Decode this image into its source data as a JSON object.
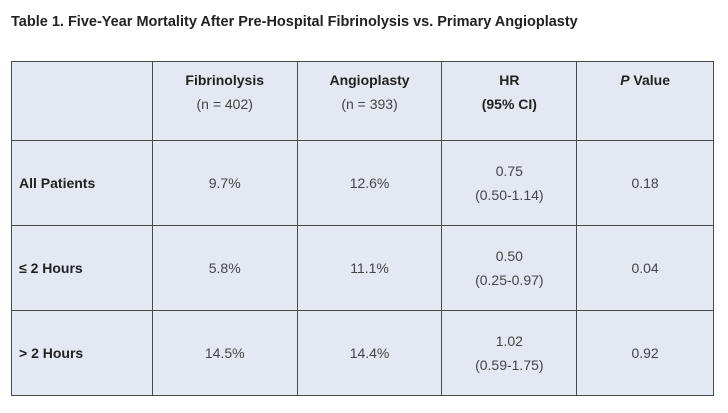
{
  "title": "Table 1. Five-Year Mortality After Pre-Hospital Fibrinolysis vs. Primary Angioplasty",
  "header": {
    "fibrinolysis": {
      "label": "Fibrinolysis",
      "sub": "(n = 402)"
    },
    "angioplasty": {
      "label": "Angioplasty",
      "sub": "(n = 393)"
    },
    "hr": {
      "label": "HR",
      "sub": "(95% CI)"
    },
    "pvalue": {
      "label_italic": "P",
      "label_rest": " Value"
    }
  },
  "rows": [
    {
      "label": "All Patients",
      "fibrinolysis": "9.7%",
      "angioplasty": "12.6%",
      "hr": "0.75",
      "ci": "(0.50-1.14)",
      "p": "0.18"
    },
    {
      "label": "≤ 2 Hours",
      "fibrinolysis": "5.8%",
      "angioplasty": "11.1%",
      "hr": "0.50",
      "ci": "(0.25-0.97)",
      "p": "0.04"
    },
    {
      "label": "> 2 Hours",
      "fibrinolysis": "14.5%",
      "angioplasty": "14.4%",
      "hr": "1.02",
      "ci": "(0.59-1.75)",
      "p": "0.92"
    }
  ]
}
